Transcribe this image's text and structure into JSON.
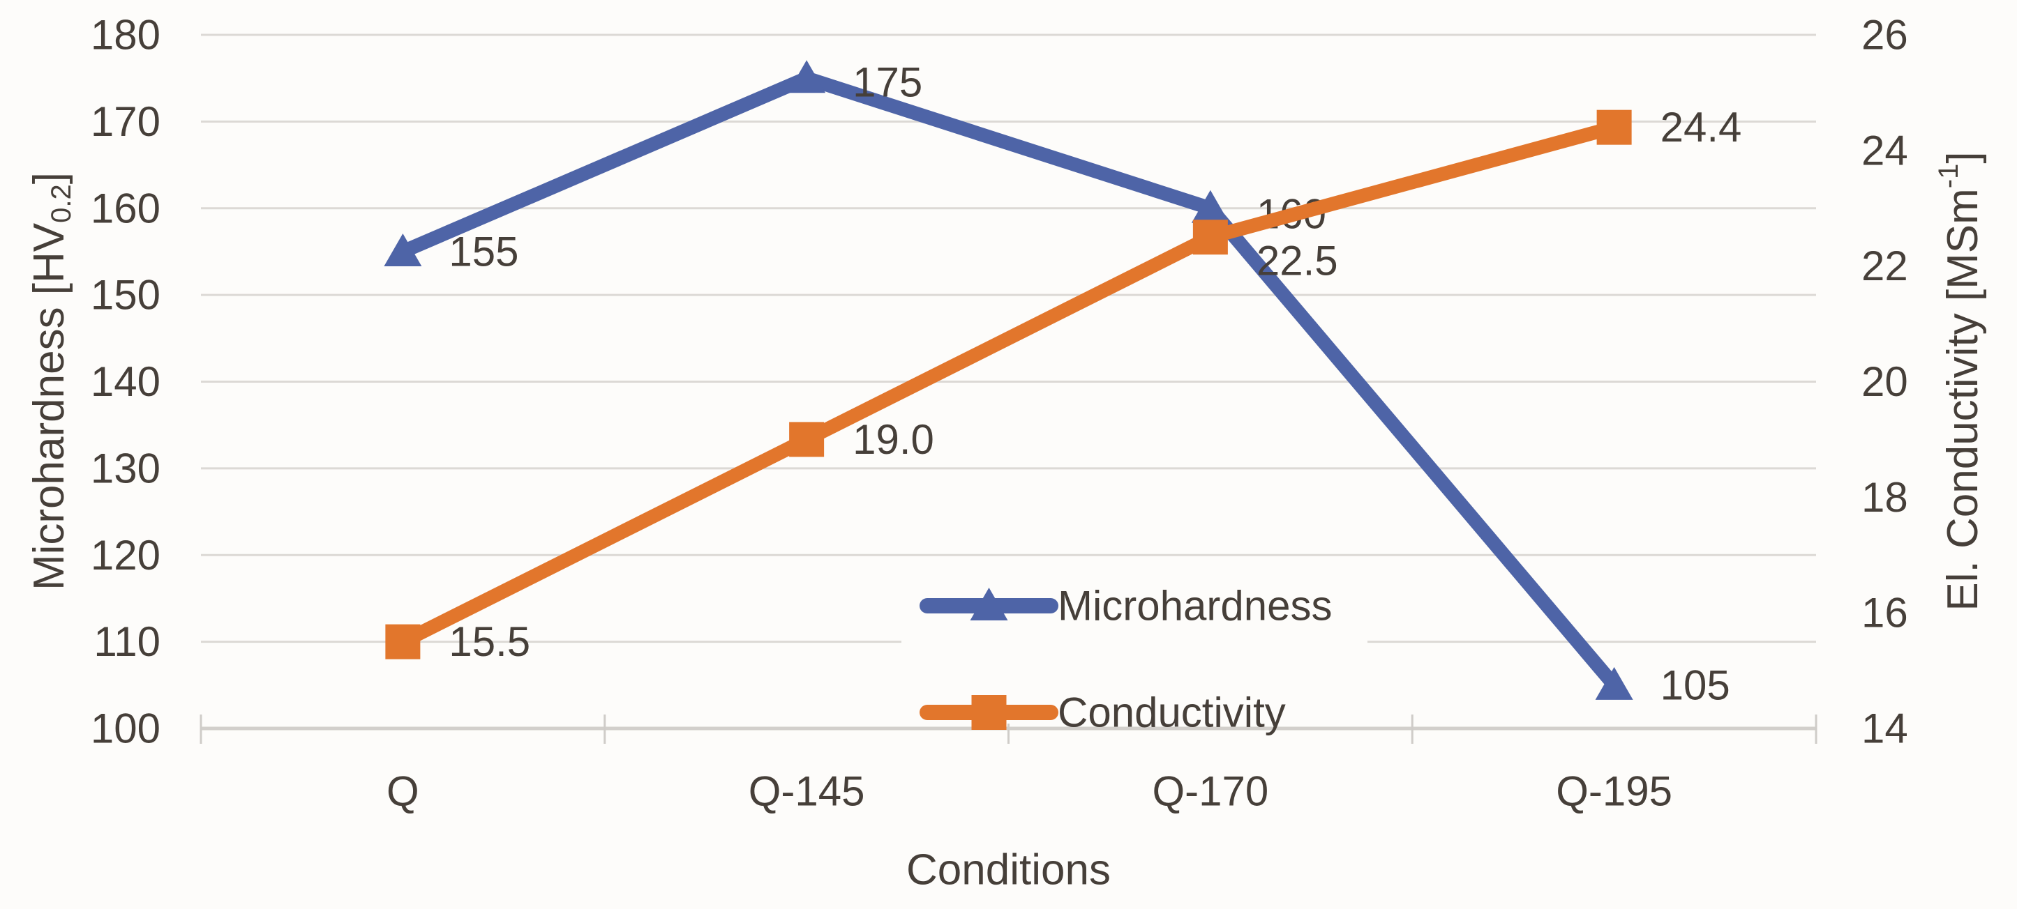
{
  "chart_data": {
    "type": "line",
    "title": "",
    "xlabel": "Conditions",
    "categories": [
      "Q",
      "Q-145",
      "Q-170",
      "Q-195"
    ],
    "y_left": {
      "title_main": "Microhardness [HV",
      "title_sub": "0.2",
      "title_close": "]",
      "min": 100,
      "max": 180,
      "step": 10,
      "ticks": [
        "180",
        "170",
        "160",
        "150",
        "140",
        "130",
        "120",
        "110",
        "100"
      ]
    },
    "y_right": {
      "title_main": "El. Conductivity [MSm",
      "title_sup": "-1",
      "title_close": "]",
      "min": 14,
      "max": 26,
      "step": 2,
      "ticks": [
        "26",
        "24",
        "22",
        "20",
        "18",
        "16",
        "14"
      ]
    },
    "series": [
      {
        "name": "Microhardness",
        "axis": "left",
        "marker": "triangle",
        "color": "#4e64a7",
        "values": [
          155,
          175,
          160,
          105
        ],
        "labels": [
          "155",
          "175",
          "160",
          "105"
        ],
        "label_dy": [
          0,
          6,
          8,
          0
        ]
      },
      {
        "name": "Conductivity",
        "axis": "right",
        "marker": "square",
        "color": "#e2762c",
        "values": [
          15.5,
          19,
          22.5,
          24.4
        ],
        "labels": [
          "15.5",
          "19.0",
          "22.5",
          "24.4"
        ],
        "label_dy": [
          0,
          0,
          34,
          0
        ]
      }
    ],
    "legend": {
      "position": "inside-bottom-center",
      "items": [
        "Microhardness",
        "Conductivity"
      ]
    },
    "grid": true,
    "colors": {
      "background": "#fdfcfa",
      "gridline": "#dcd9d5",
      "axis_line": "#d2cfcb",
      "tick_mark": "#cfccc8",
      "text": "#463f39"
    }
  }
}
